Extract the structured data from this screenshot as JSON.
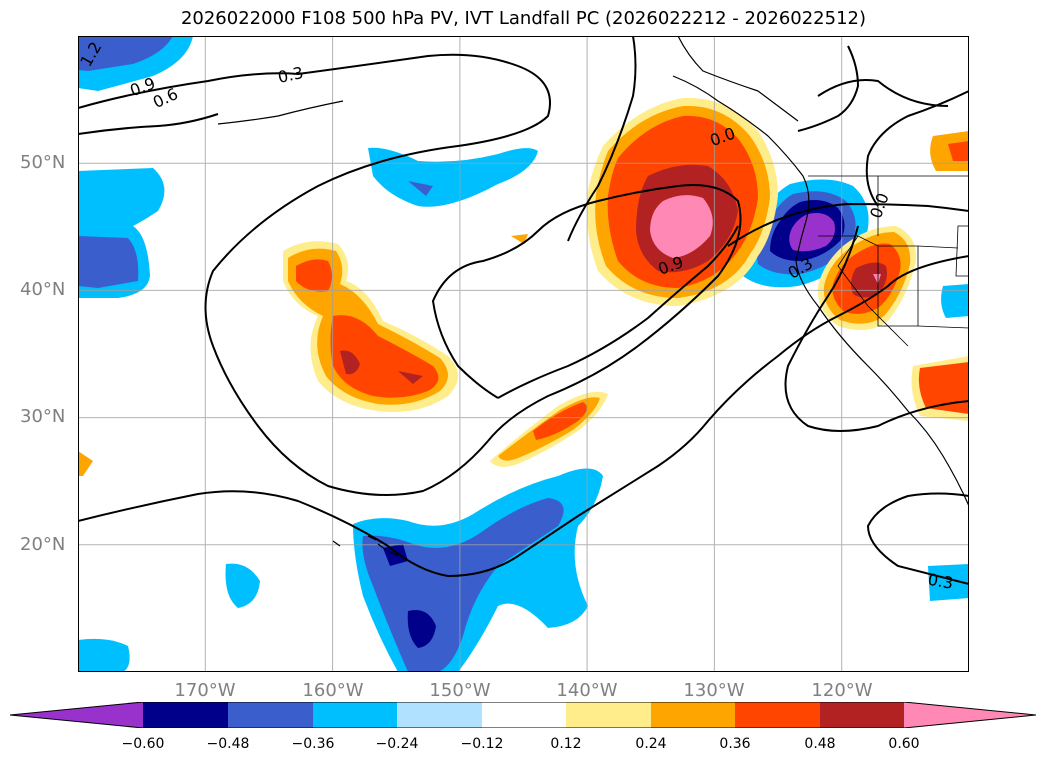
{
  "title": "2026022000 F108 500 hPa PV, IVT Landfall PC (2026022212 - 2026022512)",
  "map": {
    "lon_range": [
      -180,
      -110
    ],
    "lat_range": [
      10,
      60
    ],
    "lat_labels": [
      "50°N",
      "40°N",
      "30°N",
      "20°N"
    ],
    "lon_labels": [
      "170°W",
      "160°W",
      "150°W",
      "140°W",
      "130°W",
      "120°W"
    ],
    "contour_labels": [
      "1.2",
      "0.9",
      "0.6",
      "0.3",
      "0.0",
      "0.9",
      "0.0",
      "0.3",
      "0.3"
    ],
    "grid": true
  },
  "colorbar": {
    "tick_labels": [
      "−0.60",
      "−0.48",
      "−0.36",
      "−0.24",
      "−0.12",
      "0.12",
      "0.24",
      "0.36",
      "0.48",
      "0.60"
    ],
    "colors": [
      "#9932cc",
      "#00008b",
      "#3a5fcd",
      "#00bfff",
      "#b0e2ff",
      "#ffffff",
      "#ffec8b",
      "#ffa500",
      "#ff4500",
      "#b22222",
      "#ff88b4"
    ],
    "extend": "both"
  }
}
